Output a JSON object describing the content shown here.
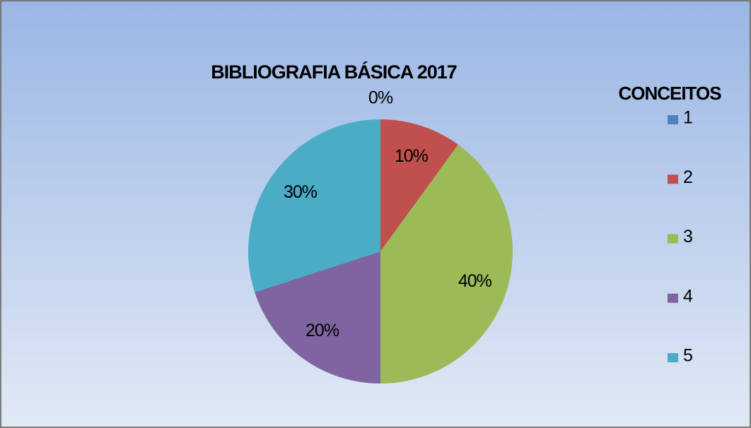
{
  "chart_data": {
    "type": "pie",
    "title": "BIBLIOGRAFIA BÁSICA 2017",
    "legend_title": "CONCEITOS",
    "categories": [
      "1",
      "2",
      "3",
      "4",
      "5"
    ],
    "values": [
      0,
      10,
      40,
      20,
      30
    ],
    "value_labels": [
      "0%",
      "10%",
      "40%",
      "20%",
      "30%"
    ],
    "colors": [
      "#4f81bd",
      "#c0504d",
      "#9bbb59",
      "#8064a2",
      "#4bacc6"
    ],
    "legend": "right"
  }
}
